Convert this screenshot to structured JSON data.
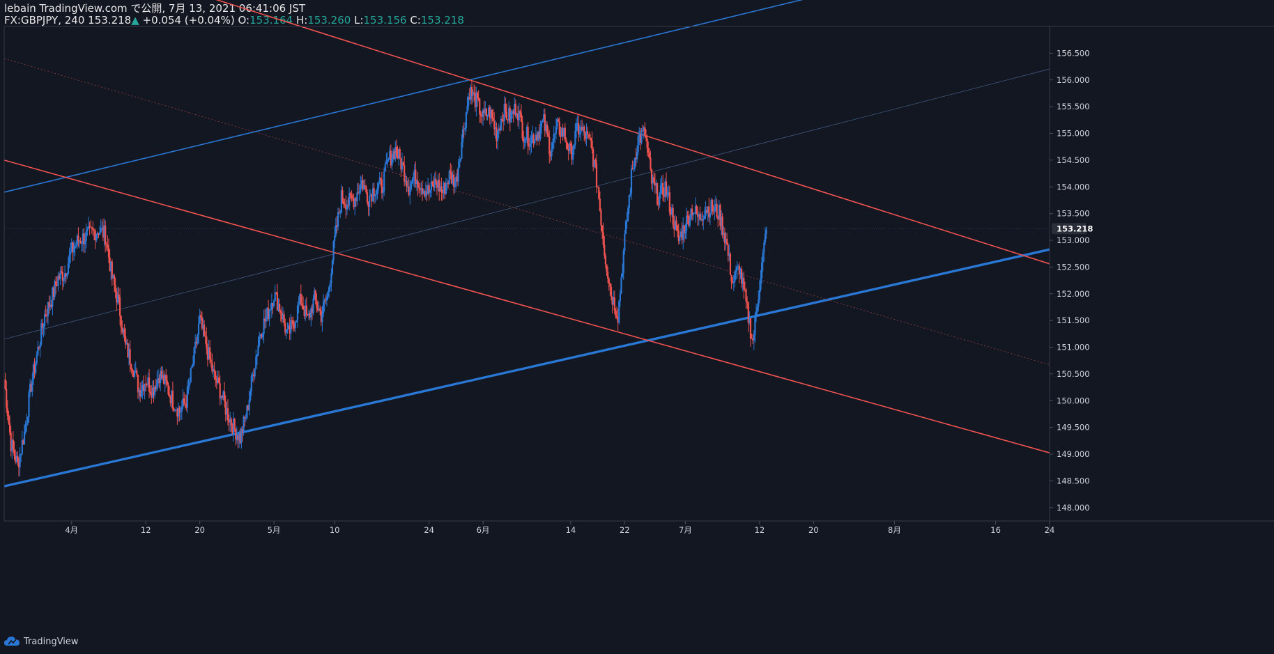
{
  "header": {
    "title": "lebain TradingView.com で公開, 7月 13, 2021 06:41:06 JST",
    "symbol": "FX:GBPJPY, 240",
    "last": "153.218",
    "change": "+0.054 (+0.04%)",
    "o_label": "O:",
    "o_value": "153.164",
    "h_label": "H:",
    "h_value": "153.260",
    "l_label": "L:",
    "l_value": "153.156",
    "c_label": "C:",
    "c_value": "153.218"
  },
  "footer": {
    "brand": "TradingView"
  },
  "colors": {
    "background": "#131722",
    "up": "#2a78d6",
    "down": "#ef5350",
    "text": "#d1d4dc",
    "change_up": "#26a69a"
  },
  "chart_data": {
    "type": "candlestick",
    "title": "FX:GBPJPY, 240",
    "x_range": [
      "2021-03-22",
      "2021-08-24"
    ],
    "ylim": [
      147.75,
      157.0
    ],
    "y_ticks": [
      "148.000",
      "148.500",
      "149.000",
      "149.500",
      "150.000",
      "150.500",
      "151.000",
      "151.500",
      "152.000",
      "152.500",
      "153.000",
      "153.500",
      "154.000",
      "154.500",
      "155.000",
      "155.500",
      "156.000",
      "156.500"
    ],
    "x_ticks": [
      {
        "date": "2021-04-01",
        "label": "4月"
      },
      {
        "date": "2021-04-12",
        "label": "12"
      },
      {
        "date": "2021-04-20",
        "label": "20"
      },
      {
        "date": "2021-05-01",
        "label": "5月"
      },
      {
        "date": "2021-05-10",
        "label": "10"
      },
      {
        "date": "2021-05-24",
        "label": "24"
      },
      {
        "date": "2021-06-01",
        "label": "6月"
      },
      {
        "date": "2021-06-14",
        "label": "14"
      },
      {
        "date": "2021-06-22",
        "label": "22"
      },
      {
        "date": "2021-07-01",
        "label": "7月"
      },
      {
        "date": "2021-07-12",
        "label": "12"
      },
      {
        "date": "2021-07-20",
        "label": "20"
      },
      {
        "date": "2021-08-01",
        "label": "8月"
      },
      {
        "date": "2021-08-16",
        "label": "16"
      },
      {
        "date": "2021-08-24",
        "label": "24"
      }
    ],
    "last_price_label": "153.218",
    "last_price": 153.218,
    "price_path": [
      [
        "2021-03-22",
        150.4
      ],
      [
        "2021-03-23",
        149.2
      ],
      [
        "2021-03-24",
        148.8
      ],
      [
        "2021-03-25",
        149.4
      ],
      [
        "2021-03-26",
        150.3
      ],
      [
        "2021-03-28",
        151.6
      ],
      [
        "2021-03-29",
        151.9
      ],
      [
        "2021-03-30",
        152.3
      ],
      [
        "2021-03-31",
        152.4
      ],
      [
        "2021-04-01",
        152.8
      ],
      [
        "2021-04-02",
        153.0
      ],
      [
        "2021-04-05",
        153.2
      ],
      [
        "2021-04-06",
        153.1
      ],
      [
        "2021-04-07",
        152.3
      ],
      [
        "2021-04-08",
        151.8
      ],
      [
        "2021-04-09",
        151.0
      ],
      [
        "2021-04-10",
        150.7
      ],
      [
        "2021-04-11",
        150.2
      ],
      [
        "2021-04-12",
        150.4
      ],
      [
        "2021-04-13",
        150.2
      ],
      [
        "2021-04-14",
        150.5
      ],
      [
        "2021-04-15",
        150.3
      ],
      [
        "2021-04-16",
        150.0
      ],
      [
        "2021-04-17",
        149.8
      ],
      [
        "2021-04-18",
        150.0
      ],
      [
        "2021-04-19",
        150.7
      ],
      [
        "2021-04-20",
        151.5
      ],
      [
        "2021-04-21",
        151.0
      ],
      [
        "2021-04-22",
        150.5
      ],
      [
        "2021-04-23",
        150.2
      ],
      [
        "2021-04-24",
        149.8
      ],
      [
        "2021-04-25",
        149.5
      ],
      [
        "2021-04-26",
        149.3
      ],
      [
        "2021-04-27",
        149.8
      ],
      [
        "2021-04-28",
        150.6
      ],
      [
        "2021-04-29",
        151.3
      ],
      [
        "2021-04-30",
        151.6
      ],
      [
        "2021-05-01",
        152.0
      ],
      [
        "2021-05-02",
        151.7
      ],
      [
        "2021-05-03",
        151.2
      ],
      [
        "2021-05-04",
        151.5
      ],
      [
        "2021-05-05",
        151.9
      ],
      [
        "2021-05-06",
        151.5
      ],
      [
        "2021-05-07",
        151.9
      ],
      [
        "2021-05-08",
        151.6
      ],
      [
        "2021-05-09",
        152.0
      ],
      [
        "2021-05-10",
        153.0
      ],
      [
        "2021-05-11",
        153.8
      ],
      [
        "2021-05-12",
        153.7
      ],
      [
        "2021-05-13",
        153.8
      ],
      [
        "2021-05-14",
        154.1
      ],
      [
        "2021-05-15",
        153.8
      ],
      [
        "2021-05-16",
        154.0
      ],
      [
        "2021-05-17",
        154.0
      ],
      [
        "2021-05-18",
        154.5
      ],
      [
        "2021-05-19",
        154.7
      ],
      [
        "2021-05-20",
        154.4
      ],
      [
        "2021-05-21",
        154.0
      ],
      [
        "2021-05-22",
        154.2
      ],
      [
        "2021-05-23",
        154.0
      ],
      [
        "2021-05-24",
        153.9
      ],
      [
        "2021-05-25",
        154.1
      ],
      [
        "2021-05-26",
        153.9
      ],
      [
        "2021-05-27",
        154.2
      ],
      [
        "2021-05-28",
        154.1
      ],
      [
        "2021-05-29",
        155.0
      ],
      [
        "2021-05-30",
        155.8
      ],
      [
        "2021-05-31",
        155.6
      ],
      [
        "2021-06-01",
        155.3
      ],
      [
        "2021-06-02",
        155.4
      ],
      [
        "2021-06-03",
        155.0
      ],
      [
        "2021-06-04",
        155.4
      ],
      [
        "2021-06-05",
        155.3
      ],
      [
        "2021-06-06",
        155.5
      ],
      [
        "2021-06-07",
        155.0
      ],
      [
        "2021-06-08",
        154.9
      ],
      [
        "2021-06-09",
        155.0
      ],
      [
        "2021-06-10",
        155.2
      ],
      [
        "2021-06-11",
        154.7
      ],
      [
        "2021-06-12",
        155.1
      ],
      [
        "2021-06-13",
        155.0
      ],
      [
        "2021-06-14",
        154.6
      ],
      [
        "2021-06-15",
        155.1
      ],
      [
        "2021-06-16",
        155.0
      ],
      [
        "2021-06-17",
        154.8
      ],
      [
        "2021-06-18",
        154.0
      ],
      [
        "2021-06-19",
        152.8
      ],
      [
        "2021-06-20",
        152.0
      ],
      [
        "2021-06-21",
        151.6
      ],
      [
        "2021-06-22",
        153.0
      ],
      [
        "2021-06-23",
        154.2
      ],
      [
        "2021-06-24",
        154.9
      ],
      [
        "2021-06-25",
        155.0
      ],
      [
        "2021-06-26",
        154.1
      ],
      [
        "2021-06-27",
        153.8
      ],
      [
        "2021-06-28",
        154.0
      ],
      [
        "2021-06-29",
        153.5
      ],
      [
        "2021-06-30",
        153.0
      ],
      [
        "2021-07-01",
        153.3
      ],
      [
        "2021-07-02",
        153.6
      ],
      [
        "2021-07-03",
        153.4
      ],
      [
        "2021-07-04",
        153.6
      ],
      [
        "2021-07-05",
        153.6
      ],
      [
        "2021-07-06",
        153.5
      ],
      [
        "2021-07-07",
        153.0
      ],
      [
        "2021-07-08",
        152.2
      ],
      [
        "2021-07-09",
        152.5
      ],
      [
        "2021-07-10",
        151.8
      ],
      [
        "2021-07-11",
        151.1
      ],
      [
        "2021-07-12",
        152.2
      ],
      [
        "2021-07-13",
        153.2
      ]
    ],
    "overlays": [
      {
        "name": "blue-channel-upper",
        "color": "#2a78d6",
        "width": 1.6,
        "style": "solid",
        "points": [
          [
            "2021-03-22",
            153.9
          ],
          [
            "2021-05-30",
            156.0
          ]
        ]
      },
      {
        "name": "blue-channel-lower",
        "color": "#2a78d6",
        "width": 3.4,
        "style": "solid",
        "points": [
          [
            "2021-03-22",
            148.4
          ],
          [
            "2021-04-26",
            149.4
          ]
        ]
      },
      {
        "name": "blue-channel-mid",
        "color": "#3f5a80",
        "width": 0.8,
        "style": "solid",
        "points": [
          [
            "2021-03-22",
            151.15
          ],
          [
            "2021-05-30",
            153.4
          ]
        ]
      },
      {
        "name": "red-channel-upper",
        "color": "#ef5350",
        "width": 1.6,
        "style": "solid",
        "points": [
          [
            "2021-05-30",
            156.0
          ],
          [
            "2021-06-24",
            155.0
          ]
        ]
      },
      {
        "name": "red-channel-lower",
        "color": "#ef5350",
        "width": 1.6,
        "style": "solid",
        "points": [
          [
            "2021-03-22",
            154.5
          ],
          [
            "2021-06-22",
            151.25
          ]
        ]
      },
      {
        "name": "red-channel-mid",
        "color": "#8a3b3b",
        "width": 0.9,
        "style": "dashed",
        "points": [
          [
            "2021-03-22",
            156.4
          ],
          [
            "2021-06-22",
            153.0
          ]
        ]
      }
    ]
  }
}
